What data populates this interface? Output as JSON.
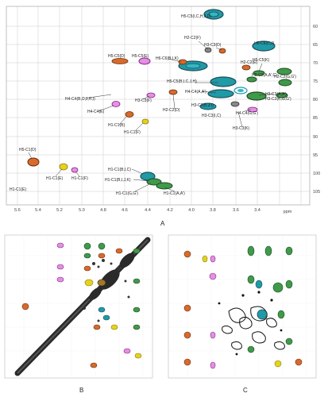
{
  "panels": {
    "A": {
      "letter": "A",
      "x_axis": {
        "unit": "ppm",
        "ticks": [
          "5.6",
          "5.4",
          "5.2",
          "5.0",
          "4.8",
          "4.6",
          "4.4",
          "4.2",
          "4.0",
          "3.8",
          "3.6",
          "3.4"
        ]
      },
      "y_axis": {
        "ticks": [
          "60",
          "65",
          "70",
          "75",
          "80",
          "85",
          "90",
          "95",
          "100",
          "105"
        ]
      },
      "labels": [
        "H5-C5(I,C,H,J,D)",
        "H2-C2(F)",
        "H3-C3(D)",
        "H6-C6(C,J)",
        "H5-C5(D)",
        "H5-C5(E)",
        "H6-C6(B,I,K)",
        "H2-C2(E)",
        "H5-C5(K)",
        "H5-C5(B,I,C,J,H)",
        "H2-C2(A,A',C)",
        "H2-C2(G,G')",
        "H4-C4(B,C,J,H,I)",
        "H3-C3(F)",
        "H4-C4(A,A')",
        "H3-C3(B,J,I)",
        "H2-C2(D)",
        "H3-C3(I,C)",
        "H3-C3(A,A')",
        "H3-C3(K,G,G')",
        "H4-C4(E)",
        "H4-C4(G,G')",
        "H1-C1(B)",
        "H3-C3(K)",
        "H1-C1(E)",
        "H1-C1(F)",
        "H5-C1(D)",
        "H1-C1(E)",
        "H1-C1(F)",
        "H1-C1(B,I,C)",
        "H1-C1(B,I,J,K)",
        "H1-C1(G,G')",
        "H1-C1(A,A')"
      ]
    },
    "B": {
      "letter": "B"
    },
    "C": {
      "letter": "C"
    }
  },
  "colors": {
    "teal": "#1f9aa6",
    "green": "#3f9a4a",
    "orange": "#d86a2a",
    "magenta": "#d04ad0",
    "yellow": "#e6d21a",
    "dark": "#333333"
  }
}
